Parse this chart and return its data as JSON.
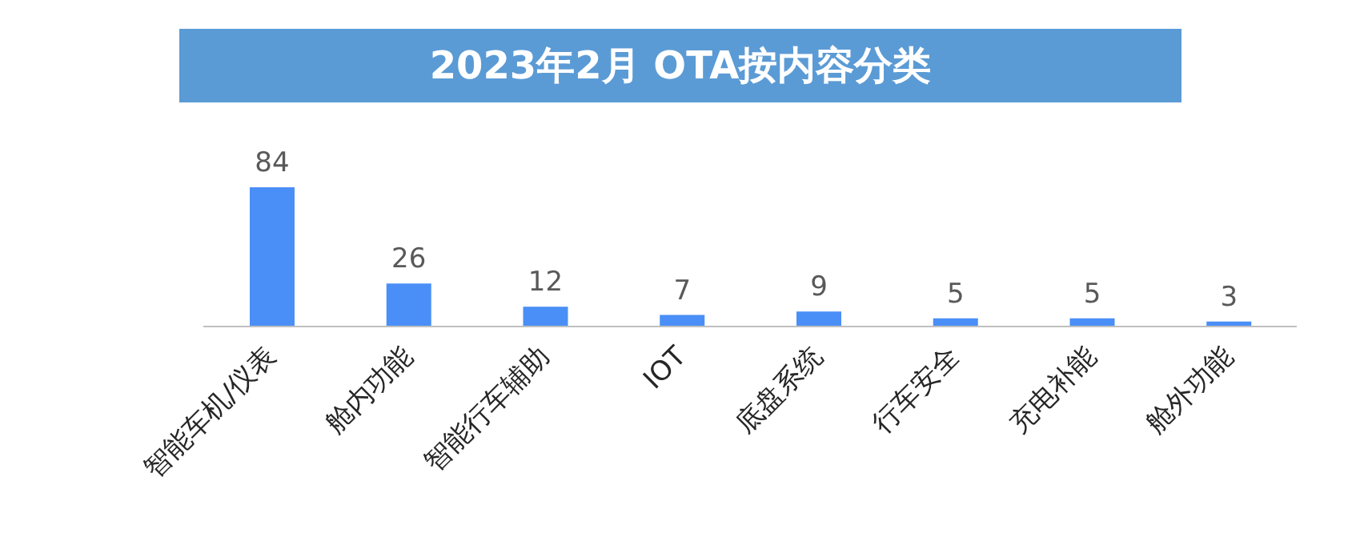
{
  "chart_data": {
    "type": "bar",
    "title": "2023年2月 OTA按内容分类",
    "categories": [
      "智能车机/仪表",
      "舱内功能",
      "智能行车辅助",
      "IOT",
      "底盘系统",
      "行车安全",
      "充电补能",
      "舱外功能"
    ],
    "values": [
      84,
      26,
      12,
      7,
      9,
      5,
      5,
      3
    ],
    "color": "#4a8ff7",
    "data_labels": true
  }
}
